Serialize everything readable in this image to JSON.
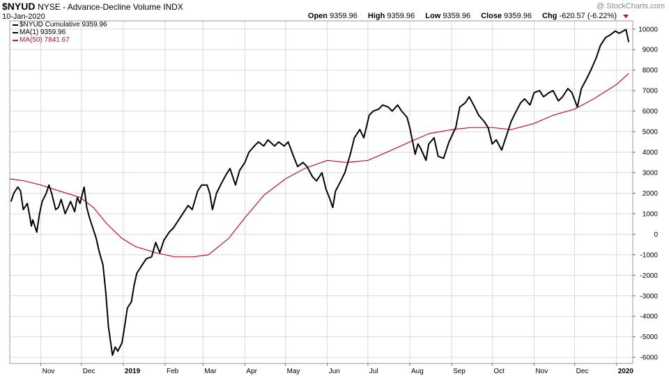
{
  "header": {
    "symbol": "$NYUD",
    "description": "NYSE - Advance-Decline Volume INDX",
    "date": "10-Jan-2020",
    "watermark": "@ StockCharts.com",
    "open_label": "Open",
    "open": "9359.96",
    "high_label": "High",
    "high": "9359.96",
    "low_label": "Low",
    "low": "9359.96",
    "close_label": "Close",
    "close": "9359.96",
    "chg_label": "Chg",
    "chg": "-620.57 (-6.22%)"
  },
  "legend": [
    {
      "text": "$NYUD Cumulative 9359.96",
      "color": "#000000"
    },
    {
      "text": "MA(1) 9359.96",
      "color": "#000000"
    },
    {
      "text": "MA(50) 7841.67",
      "color": "#c8102e"
    }
  ],
  "colors": {
    "price": "#000000",
    "ma50": "#c8102e",
    "grid": "#d9d9d9"
  },
  "chart_data": {
    "type": "line",
    "title": "$NYUD NYSE - Advance-Decline Volume INDX",
    "ylim": [
      -6300,
      10400
    ],
    "y_ticks": [
      10000,
      9000,
      8000,
      7000,
      6000,
      5000,
      4000,
      3000,
      2000,
      1000,
      0,
      -1000,
      -2000,
      -3000,
      -4000,
      -5000,
      -6000
    ],
    "y_tick_labels": [
      "10000",
      "9000",
      "8000",
      "7000",
      "6000",
      "5000",
      "4000",
      "3000",
      "2000",
      "1000",
      "0",
      "-1000",
      "-2000",
      "-3000",
      "-4000",
      "-5000",
      "-6000"
    ],
    "x_ticks": [
      {
        "label": "Nov",
        "x": "2018-11-01",
        "bold": false
      },
      {
        "label": "Dec",
        "x": "2018-12-01",
        "bold": false
      },
      {
        "label": "2019",
        "x": "2019-01-01",
        "bold": true
      },
      {
        "label": "Feb",
        "x": "2019-02-01",
        "bold": false
      },
      {
        "label": "Mar",
        "x": "2019-03-01",
        "bold": false
      },
      {
        "label": "Apr",
        "x": "2019-04-01",
        "bold": false
      },
      {
        "label": "May",
        "x": "2019-05-01",
        "bold": false
      },
      {
        "label": "Jun",
        "x": "2019-06-01",
        "bold": false
      },
      {
        "label": "Jul",
        "x": "2019-07-01",
        "bold": false
      },
      {
        "label": "Aug",
        "x": "2019-08-01",
        "bold": false
      },
      {
        "label": "Sep",
        "x": "2019-09-01",
        "bold": false
      },
      {
        "label": "Oct",
        "x": "2019-10-01",
        "bold": false
      },
      {
        "label": "Nov",
        "x": "2019-11-01",
        "bold": false
      },
      {
        "label": "Dec",
        "x": "2019-12-01",
        "bold": false
      },
      {
        "label": "2020",
        "x": "2020-01-01",
        "bold": true
      }
    ],
    "x_range": [
      "2018-10-09",
      "2020-01-13"
    ],
    "grid": true,
    "series": [
      {
        "name": "$NYUD Cumulative",
        "color": "#000000",
        "points": [
          [
            "2018-10-10",
            1600
          ],
          [
            "2018-10-12",
            2000
          ],
          [
            "2018-10-15",
            2300
          ],
          [
            "2018-10-17",
            2100
          ],
          [
            "2018-10-19",
            1200
          ],
          [
            "2018-10-22",
            1500
          ],
          [
            "2018-10-24",
            800
          ],
          [
            "2018-10-25",
            400
          ],
          [
            "2018-10-26",
            700
          ],
          [
            "2018-10-29",
            100
          ],
          [
            "2018-10-31",
            1000
          ],
          [
            "2018-11-02",
            1600
          ],
          [
            "2018-11-05",
            2000
          ],
          [
            "2018-11-07",
            2400
          ],
          [
            "2018-11-09",
            2000
          ],
          [
            "2018-11-12",
            1200
          ],
          [
            "2018-11-14",
            1300
          ],
          [
            "2018-11-16",
            1700
          ],
          [
            "2018-11-19",
            1000
          ],
          [
            "2018-11-21",
            1300
          ],
          [
            "2018-11-23",
            1600
          ],
          [
            "2018-11-26",
            1100
          ],
          [
            "2018-11-28",
            1800
          ],
          [
            "2018-11-30",
            1500
          ],
          [
            "2018-12-03",
            2300
          ],
          [
            "2018-12-05",
            1300
          ],
          [
            "2018-12-07",
            800
          ],
          [
            "2018-12-10",
            200
          ],
          [
            "2018-12-12",
            -200
          ],
          [
            "2018-12-14",
            -800
          ],
          [
            "2018-12-17",
            -1500
          ],
          [
            "2018-12-19",
            -2800
          ],
          [
            "2018-12-21",
            -4500
          ],
          [
            "2018-12-24",
            -5900
          ],
          [
            "2018-12-26",
            -5500
          ],
          [
            "2018-12-28",
            -5700
          ],
          [
            "2018-12-31",
            -5300
          ],
          [
            "2019-01-02",
            -4500
          ],
          [
            "2019-01-04",
            -3600
          ],
          [
            "2019-01-07",
            -3300
          ],
          [
            "2019-01-09",
            -2500
          ],
          [
            "2019-01-11",
            -1900
          ],
          [
            "2019-01-15",
            -1500
          ],
          [
            "2019-01-18",
            -1200
          ],
          [
            "2019-01-22",
            -1100
          ],
          [
            "2019-01-25",
            -400
          ],
          [
            "2019-01-28",
            -900
          ],
          [
            "2019-01-31",
            -300
          ],
          [
            "2019-02-04",
            100
          ],
          [
            "2019-02-07",
            300
          ],
          [
            "2019-02-11",
            700
          ],
          [
            "2019-02-14",
            1000
          ],
          [
            "2019-02-18",
            1400
          ],
          [
            "2019-02-21",
            1200
          ],
          [
            "2019-02-25",
            2100
          ],
          [
            "2019-02-28",
            2400
          ],
          [
            "2019-03-04",
            2400
          ],
          [
            "2019-03-06",
            2000
          ],
          [
            "2019-03-08",
            1200
          ],
          [
            "2019-03-11",
            2000
          ],
          [
            "2019-03-14",
            2400
          ],
          [
            "2019-03-18",
            2900
          ],
          [
            "2019-03-21",
            3200
          ],
          [
            "2019-03-25",
            2400
          ],
          [
            "2019-03-28",
            3100
          ],
          [
            "2019-04-01",
            3500
          ],
          [
            "2019-04-04",
            4000
          ],
          [
            "2019-04-08",
            4300
          ],
          [
            "2019-04-11",
            4500
          ],
          [
            "2019-04-15",
            4300
          ],
          [
            "2019-04-18",
            4600
          ],
          [
            "2019-04-23",
            4300
          ],
          [
            "2019-04-26",
            4500
          ],
          [
            "2019-04-30",
            4300
          ],
          [
            "2019-05-03",
            4500
          ],
          [
            "2019-05-07",
            3800
          ],
          [
            "2019-05-10",
            3300
          ],
          [
            "2019-05-14",
            3500
          ],
          [
            "2019-05-17",
            3300
          ],
          [
            "2019-05-21",
            2800
          ],
          [
            "2019-05-24",
            2600
          ],
          [
            "2019-05-28",
            3000
          ],
          [
            "2019-05-31",
            2200
          ],
          [
            "2019-06-03",
            1700
          ],
          [
            "2019-06-05",
            1300
          ],
          [
            "2019-06-07",
            2100
          ],
          [
            "2019-06-11",
            2600
          ],
          [
            "2019-06-14",
            3000
          ],
          [
            "2019-06-18",
            3900
          ],
          [
            "2019-06-21",
            4700
          ],
          [
            "2019-06-25",
            5100
          ],
          [
            "2019-06-28",
            4700
          ],
          [
            "2019-07-02",
            5800
          ],
          [
            "2019-07-05",
            6000
          ],
          [
            "2019-07-09",
            6100
          ],
          [
            "2019-07-12",
            6300
          ],
          [
            "2019-07-16",
            6200
          ],
          [
            "2019-07-19",
            6000
          ],
          [
            "2019-07-23",
            6300
          ],
          [
            "2019-07-26",
            6000
          ],
          [
            "2019-07-30",
            5700
          ],
          [
            "2019-08-01",
            5200
          ],
          [
            "2019-08-05",
            3900
          ],
          [
            "2019-08-07",
            4400
          ],
          [
            "2019-08-09",
            4200
          ],
          [
            "2019-08-13",
            3600
          ],
          [
            "2019-08-15",
            4400
          ],
          [
            "2019-08-19",
            4700
          ],
          [
            "2019-08-22",
            3800
          ],
          [
            "2019-08-26",
            3700
          ],
          [
            "2019-08-30",
            4500
          ],
          [
            "2019-09-04",
            5200
          ],
          [
            "2019-09-07",
            6200
          ],
          [
            "2019-09-11",
            6400
          ],
          [
            "2019-09-14",
            6700
          ],
          [
            "2019-09-18",
            6200
          ],
          [
            "2019-09-21",
            5800
          ],
          [
            "2019-09-25",
            5500
          ],
          [
            "2019-09-28",
            5200
          ],
          [
            "2019-10-01",
            4400
          ],
          [
            "2019-10-04",
            4600
          ],
          [
            "2019-10-08",
            4100
          ],
          [
            "2019-10-11",
            4700
          ],
          [
            "2019-10-15",
            5500
          ],
          [
            "2019-10-18",
            5900
          ],
          [
            "2019-10-22",
            6400
          ],
          [
            "2019-10-25",
            6600
          ],
          [
            "2019-10-29",
            6300
          ],
          [
            "2019-11-01",
            6900
          ],
          [
            "2019-11-05",
            7000
          ],
          [
            "2019-11-08",
            6700
          ],
          [
            "2019-11-12",
            6900
          ],
          [
            "2019-11-15",
            7000
          ],
          [
            "2019-11-19",
            6500
          ],
          [
            "2019-11-22",
            6700
          ],
          [
            "2019-11-26",
            7100
          ],
          [
            "2019-11-29",
            6900
          ],
          [
            "2019-12-03",
            6200
          ],
          [
            "2019-12-06",
            7100
          ],
          [
            "2019-12-10",
            7600
          ],
          [
            "2019-12-13",
            8000
          ],
          [
            "2019-12-17",
            8600
          ],
          [
            "2019-12-20",
            9200
          ],
          [
            "2019-12-24",
            9600
          ],
          [
            "2019-12-27",
            9700
          ],
          [
            "2019-12-31",
            9900
          ],
          [
            "2020-01-03",
            9800
          ],
          [
            "2020-01-08",
            9980
          ],
          [
            "2020-01-10",
            9360
          ]
        ]
      },
      {
        "name": "MA(50)",
        "color": "#c8102e",
        "points": [
          [
            "2018-10-09",
            2700
          ],
          [
            "2018-10-20",
            2600
          ],
          [
            "2018-11-01",
            2400
          ],
          [
            "2018-11-15",
            2100
          ],
          [
            "2018-11-30",
            1800
          ],
          [
            "2018-12-10",
            1300
          ],
          [
            "2018-12-20",
            500
          ],
          [
            "2018-12-31",
            -200
          ],
          [
            "2019-01-10",
            -600
          ],
          [
            "2019-01-25",
            -900
          ],
          [
            "2019-02-08",
            -1100
          ],
          [
            "2019-02-22",
            -1100
          ],
          [
            "2019-03-05",
            -1000
          ],
          [
            "2019-03-20",
            -200
          ],
          [
            "2019-04-01",
            800
          ],
          [
            "2019-04-15",
            1900
          ],
          [
            "2019-05-01",
            2700
          ],
          [
            "2019-05-15",
            3200
          ],
          [
            "2019-06-01",
            3600
          ],
          [
            "2019-06-15",
            3500
          ],
          [
            "2019-07-01",
            3600
          ],
          [
            "2019-07-15",
            4000
          ],
          [
            "2019-08-01",
            4500
          ],
          [
            "2019-08-15",
            4900
          ],
          [
            "2019-09-01",
            5100
          ],
          [
            "2019-09-15",
            5200
          ],
          [
            "2019-10-01",
            5200
          ],
          [
            "2019-10-15",
            5100
          ],
          [
            "2019-11-01",
            5400
          ],
          [
            "2019-11-15",
            5800
          ],
          [
            "2019-12-01",
            6100
          ],
          [
            "2019-12-15",
            6600
          ],
          [
            "2020-01-01",
            7300
          ],
          [
            "2020-01-10",
            7842
          ]
        ]
      }
    ]
  }
}
